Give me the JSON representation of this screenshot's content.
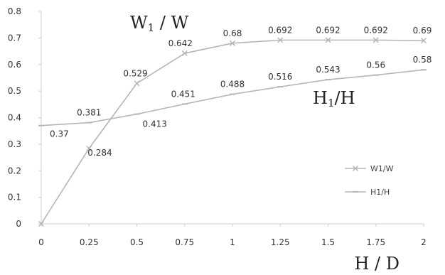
{
  "chart_data": {
    "type": "line",
    "x": [
      0,
      0.25,
      0.5,
      0.75,
      1,
      1.25,
      1.5,
      1.75,
      2
    ],
    "x_tick_labels": [
      "0",
      "0.25",
      "0.5",
      "0.75",
      "1",
      "1.25",
      "1.5",
      "1.75",
      "2"
    ],
    "y_tick_labels": [
      "0",
      "0.1",
      "0.2",
      "0.3",
      "0.4",
      "0.5",
      "0.6",
      "0.7",
      "0.8"
    ],
    "xlim": [
      0,
      2
    ],
    "ylim": [
      0,
      0.8
    ],
    "xlabel": "H / D",
    "ylabel": "",
    "grid": false,
    "legend_position": "right",
    "series": [
      {
        "name": "W1/W",
        "marker": "x",
        "color": "#b5b5b5",
        "values": [
          0,
          0.284,
          0.529,
          0.642,
          0.68,
          0.692,
          0.692,
          0.692,
          0.69
        ],
        "labels": [
          "",
          "0.284",
          "0.529",
          "0.642",
          "0.68",
          "0.692",
          "0.692",
          "0.692",
          "0.69"
        ]
      },
      {
        "name": "H1/H",
        "marker": "dash",
        "color": "#b5b5b5",
        "values": [
          0.37,
          0.381,
          0.413,
          0.451,
          0.488,
          0.516,
          0.543,
          0.56,
          0.58
        ],
        "labels": [
          "0.37",
          "0.381",
          "0.413",
          "0.451",
          "0.488",
          "0.516",
          "0.543",
          "0.56",
          "0.58"
        ]
      }
    ],
    "annotations": [
      {
        "id": "w-annotation",
        "text": "W",
        "subscript": "1",
        "suffix": " / W"
      },
      {
        "id": "h-annotation",
        "text": "H",
        "subscript": "1",
        "suffix": "/H"
      }
    ]
  }
}
